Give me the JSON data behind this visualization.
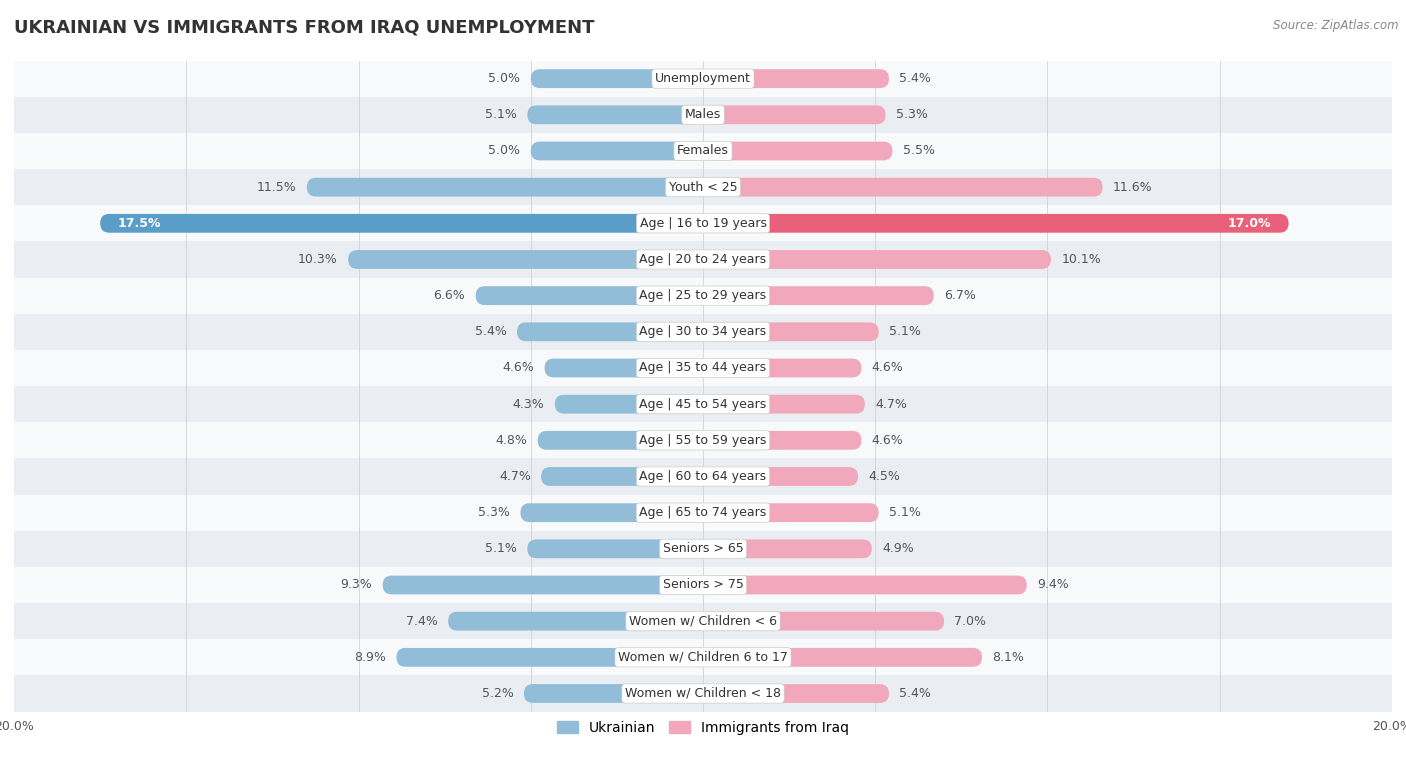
{
  "title": "UKRAINIAN VS IMMIGRANTS FROM IRAQ UNEMPLOYMENT",
  "source": "Source: ZipAtlas.com",
  "categories": [
    "Unemployment",
    "Males",
    "Females",
    "Youth < 25",
    "Age | 16 to 19 years",
    "Age | 20 to 24 years",
    "Age | 25 to 29 years",
    "Age | 30 to 34 years",
    "Age | 35 to 44 years",
    "Age | 45 to 54 years",
    "Age | 55 to 59 years",
    "Age | 60 to 64 years",
    "Age | 65 to 74 years",
    "Seniors > 65",
    "Seniors > 75",
    "Women w/ Children < 6",
    "Women w/ Children 6 to 17",
    "Women w/ Children < 18"
  ],
  "ukrainian": [
    5.0,
    5.1,
    5.0,
    11.5,
    17.5,
    10.3,
    6.6,
    5.4,
    4.6,
    4.3,
    4.8,
    4.7,
    5.3,
    5.1,
    9.3,
    7.4,
    8.9,
    5.2
  ],
  "iraq": [
    5.4,
    5.3,
    5.5,
    11.6,
    17.0,
    10.1,
    6.7,
    5.1,
    4.6,
    4.7,
    4.6,
    4.5,
    5.1,
    4.9,
    9.4,
    7.0,
    8.1,
    5.4
  ],
  "ukrainian_color": "#92BDD9",
  "iraq_color": "#F2A8BC",
  "ukrainian_highlight": "#5B9DC9",
  "iraq_highlight": "#E8607A",
  "bg_row_even": "#EAEEF2",
  "bg_row_odd": "#F8F9FB",
  "max_val": 20.0,
  "label_left": "Ukrainian",
  "label_right": "Immigrants from Iraq",
  "bar_height": 0.52,
  "title_fontsize": 13,
  "cat_fontsize": 9,
  "val_fontsize": 9,
  "tick_fontsize": 9
}
